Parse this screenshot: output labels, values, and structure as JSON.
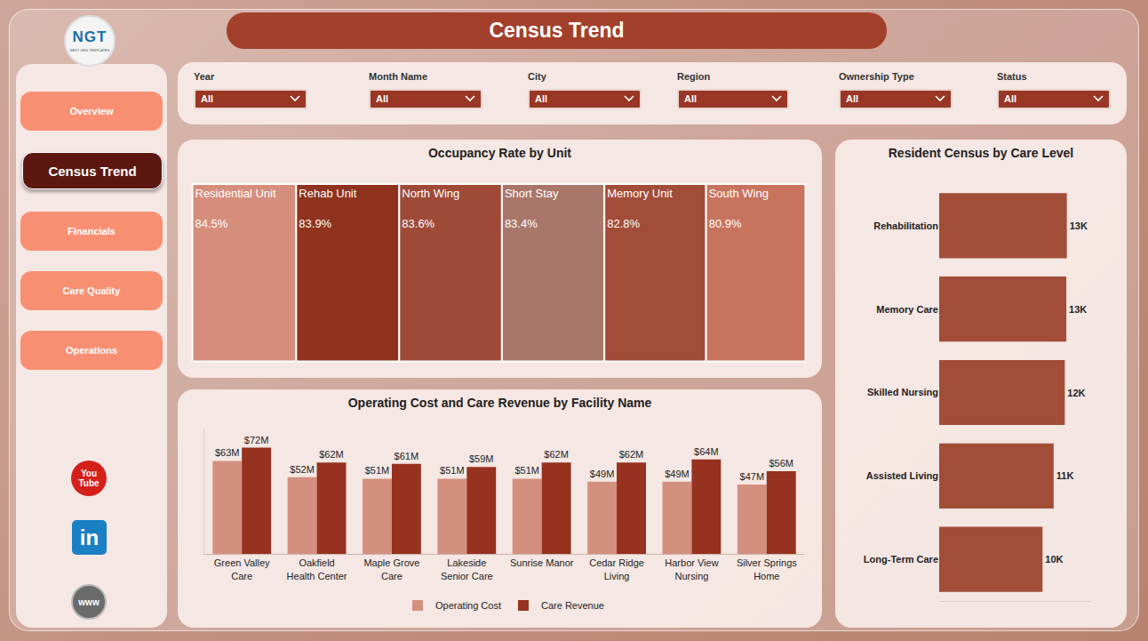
{
  "header": {
    "logo": "NGT",
    "logo_subtitle": "NEXT GEN TEMPLATES",
    "title": "Census Trend"
  },
  "nav": {
    "items": [
      "Overview",
      "Census Trend",
      "Financials",
      "Care Quality",
      "Operations"
    ],
    "active": "Census Trend"
  },
  "icons": [
    "You Tube",
    "in",
    "www"
  ],
  "filters": [
    {
      "label": "Year",
      "value": "All"
    },
    {
      "label": "Month Name",
      "value": "All"
    },
    {
      "label": "City",
      "value": "All"
    },
    {
      "label": "Region",
      "value": "All"
    },
    {
      "label": "Ownership Type",
      "value": "All"
    },
    {
      "label": "Status",
      "value": "All"
    }
  ],
  "chart_data": [
    {
      "type": "treemap",
      "title": "Occupancy Rate by Unit",
      "categories": [
        "Residential Unit",
        "Rehab Unit",
        "North Wing",
        "Short Stay",
        "Memory Unit",
        "South Wing"
      ],
      "values": [
        84.5,
        83.9,
        83.6,
        83.4,
        82.8,
        80.9
      ],
      "value_labels": [
        "84.5%",
        "83.9%",
        "83.6%",
        "83.4%",
        "82.8%",
        "80.9%"
      ],
      "colors": [
        "#d58e7c",
        "#8f321e",
        "#9f4a36",
        "#a9766a",
        "#a24d38",
        "#c8735e"
      ],
      "data_labels": true
    },
    {
      "type": "bar",
      "title": "Operating Cost and Care Revenue by Facility Name",
      "categories": [
        "Green Valley Care",
        "Oakfield Health Center",
        "Maple Grove Care",
        "Lakeside Senior Care",
        "Sunrise Manor",
        "Cedar Ridge Living",
        "Harbor View Nursing",
        "Silver Springs Home"
      ],
      "series": [
        {
          "name": "Operating Cost",
          "color": "#d4907e",
          "values": [
            63,
            52,
            51,
            51,
            51,
            49,
            49,
            47
          ],
          "value_labels": [
            "$63M",
            "$52M",
            "$51M",
            "$51M",
            "$51M",
            "$49M",
            "$49M",
            "$47M"
          ]
        },
        {
          "name": "Care Revenue",
          "color": "#96321f",
          "values": [
            72,
            62,
            61,
            59,
            62,
            62,
            64,
            56
          ],
          "value_labels": [
            "$72M",
            "$62M",
            "$61M",
            "$59M",
            "$62M",
            "$62M",
            "$64M",
            "$56M"
          ]
        }
      ],
      "ylim": [
        0,
        85
      ],
      "tick_labels": "x",
      "data_labels": true,
      "legend": "bottom"
    },
    {
      "type": "bar",
      "orientation": "horizontal",
      "title": "Resident Census by Care Level",
      "categories": [
        "Rehabilitation",
        "Memory Care",
        "Skilled Nursing",
        "Assisted Living",
        "Long-Term Care"
      ],
      "values": [
        12600,
        12550,
        12400,
        11300,
        10200
      ],
      "value_labels": [
        "13K",
        "13K",
        "12K",
        "11K",
        "10K"
      ],
      "color": "#a24d38",
      "xlim": [
        0,
        15000
      ],
      "tick_labels": "y",
      "data_labels": true
    }
  ]
}
